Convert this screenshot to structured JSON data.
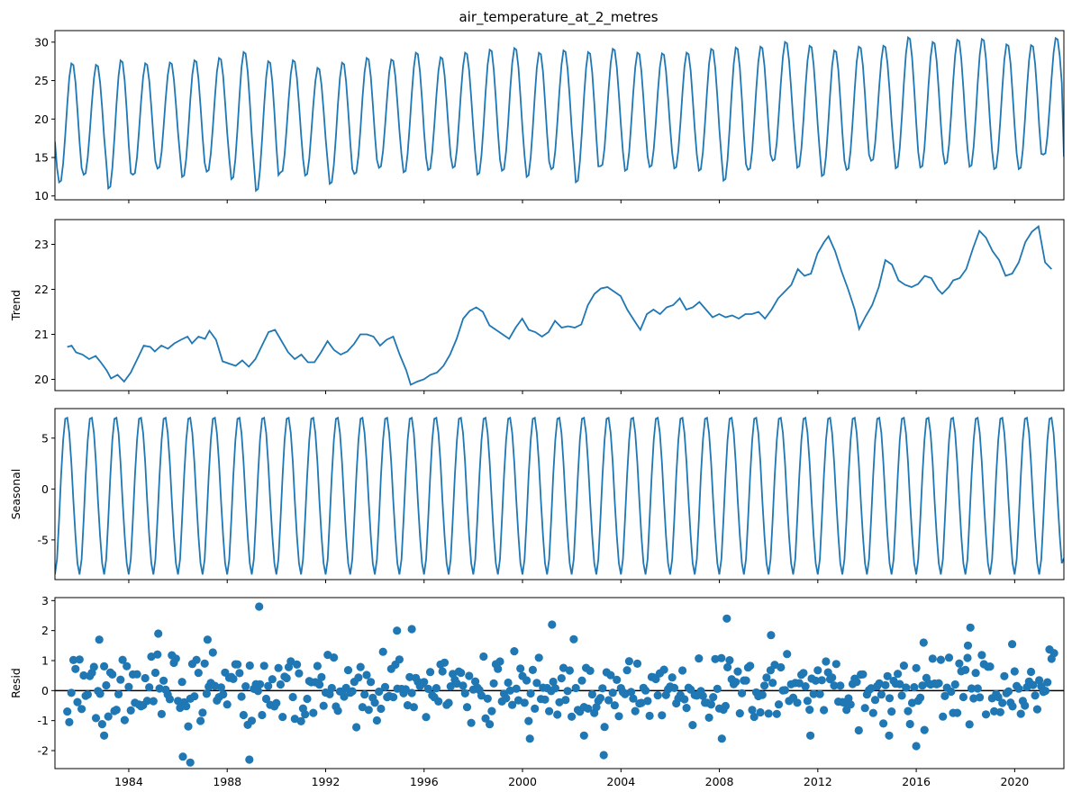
{
  "title": "air_temperature_at_2_metres",
  "colors": {
    "series": "#1f77b4",
    "axis": "#000000",
    "zero_line": "#000000"
  },
  "x_axis": {
    "range": [
      1981.0,
      2022.0
    ],
    "ticks": [
      1984,
      1988,
      1992,
      1996,
      2000,
      2004,
      2008,
      2012,
      2016,
      2020
    ]
  },
  "chart_data": [
    {
      "panel": "observed",
      "type": "line",
      "ylabel": "",
      "ylim": [
        9.5,
        31.5
      ],
      "yticks": [
        10,
        15,
        20,
        25,
        30
      ],
      "start": 1981.0,
      "step_years": 0.08333,
      "mean": 21.2,
      "amplitude": 7.4,
      "phase_offset": -0.58,
      "peaks": [
        {
          "x": 1981.7,
          "y": 27.4
        },
        {
          "x": 1982.7,
          "y": 27.2
        },
        {
          "x": 1983.7,
          "y": 27.8
        },
        {
          "x": 1984.7,
          "y": 27.4
        },
        {
          "x": 1985.7,
          "y": 27.5
        },
        {
          "x": 1986.7,
          "y": 27.8
        },
        {
          "x": 1987.7,
          "y": 28.1
        },
        {
          "x": 1988.7,
          "y": 28.9
        },
        {
          "x": 1989.7,
          "y": 27.7
        },
        {
          "x": 1990.7,
          "y": 27.8
        },
        {
          "x": 1991.7,
          "y": 26.8
        },
        {
          "x": 1992.7,
          "y": 27.5
        },
        {
          "x": 1993.7,
          "y": 28.1
        },
        {
          "x": 1994.7,
          "y": 27.9
        },
        {
          "x": 1995.7,
          "y": 28.8
        },
        {
          "x": 1996.7,
          "y": 28.2
        },
        {
          "x": 1997.7,
          "y": 28.8
        },
        {
          "x": 1998.7,
          "y": 29.2
        },
        {
          "x": 1999.7,
          "y": 29.4
        },
        {
          "x": 2000.7,
          "y": 28.8
        },
        {
          "x": 2001.7,
          "y": 29.1
        },
        {
          "x": 2002.7,
          "y": 28.9
        },
        {
          "x": 2003.7,
          "y": 29.3
        },
        {
          "x": 2004.7,
          "y": 28.8
        },
        {
          "x": 2005.7,
          "y": 28.7
        },
        {
          "x": 2006.7,
          "y": 28.8
        },
        {
          "x": 2007.7,
          "y": 29.3
        },
        {
          "x": 2008.7,
          "y": 29.5
        },
        {
          "x": 2009.7,
          "y": 29.6
        },
        {
          "x": 2010.7,
          "y": 30.2
        },
        {
          "x": 2011.7,
          "y": 29.7
        },
        {
          "x": 2012.7,
          "y": 29.1
        },
        {
          "x": 2013.7,
          "y": 29.6
        },
        {
          "x": 2014.7,
          "y": 29.7
        },
        {
          "x": 2015.7,
          "y": 30.8
        },
        {
          "x": 2016.7,
          "y": 30.2
        },
        {
          "x": 2017.7,
          "y": 30.5
        },
        {
          "x": 2018.7,
          "y": 30.6
        },
        {
          "x": 2019.7,
          "y": 29.9
        },
        {
          "x": 2020.7,
          "y": 29.8
        },
        {
          "x": 2021.7,
          "y": 30.7
        }
      ],
      "troughs": [
        {
          "x": 1981.1,
          "y": 11.6
        },
        {
          "x": 1982.1,
          "y": 12.6
        },
        {
          "x": 1983.1,
          "y": 10.8
        },
        {
          "x": 1984.1,
          "y": 12.6
        },
        {
          "x": 1985.1,
          "y": 13.4
        },
        {
          "x": 1986.1,
          "y": 12.3
        },
        {
          "x": 1987.1,
          "y": 13.0
        },
        {
          "x": 1988.1,
          "y": 12.0
        },
        {
          "x": 1989.1,
          "y": 10.5
        },
        {
          "x": 1990.1,
          "y": 12.9
        },
        {
          "x": 1991.1,
          "y": 12.5
        },
        {
          "x": 1992.1,
          "y": 11.4
        },
        {
          "x": 1993.1,
          "y": 12.7
        },
        {
          "x": 1994.1,
          "y": 13.5
        },
        {
          "x": 1995.1,
          "y": 12.9
        },
        {
          "x": 1996.1,
          "y": 13.2
        },
        {
          "x": 1997.1,
          "y": 13.5
        },
        {
          "x": 1998.1,
          "y": 12.6
        },
        {
          "x": 1999.1,
          "y": 13.1
        },
        {
          "x": 2000.1,
          "y": 12.3
        },
        {
          "x": 2001.1,
          "y": 13.3
        },
        {
          "x": 2002.1,
          "y": 11.6
        },
        {
          "x": 2003.1,
          "y": 13.7
        },
        {
          "x": 2004.1,
          "y": 13.1
        },
        {
          "x": 2005.1,
          "y": 13.6
        },
        {
          "x": 2006.1,
          "y": 13.4
        },
        {
          "x": 2007.1,
          "y": 13.1
        },
        {
          "x": 2008.1,
          "y": 11.8
        },
        {
          "x": 2009.1,
          "y": 13.2
        },
        {
          "x": 2010.1,
          "y": 14.4
        },
        {
          "x": 2011.1,
          "y": 13.5
        },
        {
          "x": 2012.1,
          "y": 12.4
        },
        {
          "x": 2013.1,
          "y": 13.2
        },
        {
          "x": 2014.1,
          "y": 14.4
        },
        {
          "x": 2015.1,
          "y": 13.4
        },
        {
          "x": 2016.1,
          "y": 13.5
        },
        {
          "x": 2017.1,
          "y": 14.0
        },
        {
          "x": 2018.1,
          "y": 13.6
        },
        {
          "x": 2019.1,
          "y": 13.3
        },
        {
          "x": 2020.1,
          "y": 13.3
        },
        {
          "x": 2021.1,
          "y": 15.2
        }
      ],
      "end_value": 15.1
    },
    {
      "panel": "trend",
      "type": "line",
      "ylabel": "Trend",
      "ylim": [
        19.75,
        23.55
      ],
      "yticks": [
        20,
        21,
        22,
        23
      ],
      "points": [
        [
          1981.5,
          20.72
        ],
        [
          1981.7,
          20.75
        ],
        [
          1981.9,
          20.6
        ],
        [
          1982.2,
          20.55
        ],
        [
          1982.5,
          20.45
        ],
        [
          1982.8,
          20.52
        ],
        [
          1983.0,
          20.4
        ],
        [
          1983.3,
          20.2
        ],
        [
          1983.5,
          20.02
        ],
        [
          1983.8,
          20.1
        ],
        [
          1984.1,
          19.95
        ],
        [
          1984.4,
          20.15
        ],
        [
          1984.7,
          20.45
        ],
        [
          1985.0,
          20.75
        ],
        [
          1985.3,
          20.72
        ],
        [
          1985.5,
          20.62
        ],
        [
          1985.8,
          20.75
        ],
        [
          1986.1,
          20.68
        ],
        [
          1986.4,
          20.8
        ],
        [
          1986.7,
          20.88
        ],
        [
          1987.0,
          20.95
        ],
        [
          1987.2,
          20.8
        ],
        [
          1987.5,
          20.95
        ],
        [
          1987.8,
          20.9
        ],
        [
          1988.0,
          21.08
        ],
        [
          1988.3,
          20.88
        ],
        [
          1988.6,
          20.4
        ],
        [
          1988.9,
          20.35
        ],
        [
          1989.2,
          20.3
        ],
        [
          1989.5,
          20.42
        ],
        [
          1989.8,
          20.28
        ],
        [
          1990.1,
          20.45
        ],
        [
          1990.4,
          20.75
        ],
        [
          1990.7,
          21.05
        ],
        [
          1991.0,
          21.1
        ],
        [
          1991.3,
          20.85
        ],
        [
          1991.6,
          20.6
        ],
        [
          1991.9,
          20.45
        ],
        [
          1992.2,
          20.55
        ],
        [
          1992.5,
          20.38
        ],
        [
          1992.8,
          20.38
        ],
        [
          1993.1,
          20.6
        ],
        [
          1993.4,
          20.85
        ],
        [
          1993.7,
          20.65
        ],
        [
          1994.0,
          20.55
        ],
        [
          1994.3,
          20.62
        ],
        [
          1994.6,
          20.78
        ],
        [
          1994.9,
          21.0
        ],
        [
          1995.2,
          21.0
        ],
        [
          1995.5,
          20.95
        ],
        [
          1995.8,
          20.75
        ],
        [
          1996.1,
          20.88
        ],
        [
          1996.4,
          20.95
        ],
        [
          1996.7,
          20.55
        ],
        [
          1997.0,
          20.2
        ],
        [
          1997.2,
          19.88
        ],
        [
          1997.5,
          19.95
        ],
        [
          1997.8,
          20.0
        ],
        [
          1998.1,
          20.1
        ],
        [
          1998.4,
          20.15
        ],
        [
          1998.7,
          20.3
        ],
        [
          1999.0,
          20.55
        ],
        [
          1999.3,
          20.9
        ],
        [
          1999.6,
          21.35
        ],
        [
          1999.9,
          21.52
        ],
        [
          2000.2,
          21.6
        ],
        [
          2000.5,
          21.5
        ],
        [
          2000.8,
          21.2
        ],
        [
          2001.1,
          21.1
        ],
        [
          2001.4,
          21.0
        ],
        [
          2001.7,
          20.9
        ],
        [
          2002.0,
          21.15
        ],
        [
          2002.3,
          21.35
        ],
        [
          2002.6,
          21.1
        ],
        [
          2002.9,
          21.05
        ],
        [
          2003.2,
          20.95
        ],
        [
          2003.5,
          21.05
        ],
        [
          2003.8,
          21.3
        ],
        [
          2004.1,
          21.15
        ],
        [
          2004.4,
          21.18
        ],
        [
          2004.7,
          21.15
        ],
        [
          2005.0,
          21.22
        ],
        [
          2005.3,
          21.65
        ],
        [
          2005.6,
          21.9
        ],
        [
          2005.9,
          22.02
        ],
        [
          2006.2,
          22.05
        ],
        [
          2006.5,
          21.95
        ],
        [
          2006.8,
          21.85
        ],
        [
          2007.1,
          21.55
        ],
        [
          2007.4,
          21.32
        ],
        [
          2007.7,
          21.1
        ],
        [
          2008.0,
          21.45
        ],
        [
          2008.3,
          21.55
        ],
        [
          2008.6,
          21.45
        ],
        [
          2008.9,
          21.6
        ],
        [
          2009.2,
          21.65
        ],
        [
          2009.5,
          21.8
        ],
        [
          2009.8,
          21.55
        ],
        [
          2010.1,
          21.6
        ],
        [
          2010.4,
          21.72
        ],
        [
          2010.7,
          21.55
        ],
        [
          2011.0,
          21.38
        ],
        [
          2011.3,
          21.45
        ],
        [
          2011.6,
          21.38
        ],
        [
          2011.9,
          21.42
        ],
        [
          2012.2,
          21.35
        ],
        [
          2012.5,
          21.45
        ],
        [
          2012.8,
          21.45
        ],
        [
          2013.1,
          21.5
        ],
        [
          2013.4,
          21.35
        ],
        [
          2013.7,
          21.55
        ],
        [
          2014.0,
          21.8
        ],
        [
          2014.3,
          21.95
        ],
        [
          2014.6,
          22.1
        ],
        [
          2014.9,
          22.45
        ],
        [
          2015.2,
          22.3
        ],
        [
          2015.5,
          22.35
        ],
        [
          2015.8,
          22.8
        ],
        [
          2016.1,
          23.05
        ],
        [
          2016.3,
          23.18
        ],
        [
          2016.6,
          22.85
        ],
        [
          2016.9,
          22.4
        ],
        [
          2017.2,
          22.0
        ],
        [
          2017.5,
          21.55
        ],
        [
          2017.7,
          21.12
        ],
        [
          2018.0,
          21.4
        ],
        [
          2018.3,
          21.65
        ],
        [
          2018.6,
          22.05
        ],
        [
          2018.9,
          22.65
        ],
        [
          2019.2,
          22.55
        ],
        [
          2019.5,
          22.2
        ],
        [
          2019.8,
          22.1
        ],
        [
          2020.1,
          22.05
        ],
        [
          2020.4,
          22.12
        ],
        [
          2020.7,
          22.3
        ],
        [
          2021.0,
          22.25
        ],
        [
          2021.3,
          22.0
        ],
        [
          2021.5,
          21.9
        ],
        [
          2021.8,
          22.05
        ],
        [
          2022.0,
          22.2
        ]
      ],
      "tail": [
        [
          2022.3,
          22.25
        ],
        [
          2022.6,
          22.45
        ],
        [
          2022.9,
          22.9
        ],
        [
          2023.2,
          23.3
        ],
        [
          2023.5,
          23.15
        ],
        [
          2023.8,
          22.85
        ],
        [
          2024.1,
          22.65
        ],
        [
          2024.4,
          22.3
        ],
        [
          2024.7,
          22.35
        ],
        [
          2025.0,
          22.6
        ],
        [
          2025.3,
          23.05
        ],
        [
          2025.6,
          23.28
        ],
        [
          2025.9,
          23.4
        ],
        [
          2026.2,
          22.6
        ],
        [
          2026.5,
          22.45
        ]
      ]
    },
    {
      "panel": "seasonal",
      "type": "line",
      "ylabel": "Seasonal",
      "ylim": [
        -8.9,
        7.9
      ],
      "yticks": [
        -5,
        0,
        5
      ],
      "start": 1981.0,
      "step_years": 0.08333,
      "monthly_pattern": [
        -8.4,
        -6.9,
        -3.0,
        1.3,
        4.8,
        6.9,
        7.0,
        5.5,
        2.6,
        -1.2,
        -4.6,
        -7.3
      ],
      "end_value": -6.8
    },
    {
      "panel": "resid",
      "type": "scatter",
      "ylabel": "Resid",
      "ylim": [
        -2.6,
        3.1
      ],
      "yticks": [
        -2,
        -1,
        0,
        1,
        2,
        3
      ],
      "zero_line": 0,
      "start": 1981.0,
      "step_years": 0.08333,
      "seed": 42,
      "highlights": [
        [
          1982.8,
          1.7
        ],
        [
          1985.2,
          1.9
        ],
        [
          1986.2,
          -2.2
        ],
        [
          1986.5,
          -2.4
        ],
        [
          1987.2,
          1.7
        ],
        [
          1988.9,
          -2.3
        ],
        [
          1989.3,
          2.8
        ],
        [
          1994.9,
          2.0
        ],
        [
          1995.5,
          2.05
        ],
        [
          2001.2,
          2.2
        ],
        [
          2003.3,
          -2.15
        ],
        [
          2008.1,
          -1.6
        ],
        [
          2008.3,
          2.4
        ],
        [
          2010.1,
          1.85
        ],
        [
          2016.0,
          -1.85
        ],
        [
          2016.3,
          1.6
        ],
        [
          2018.2,
          2.1
        ],
        [
          2018.1,
          1.5
        ],
        [
          2019.9,
          1.55
        ],
        [
          2021.6,
          1.25
        ],
        [
          2000.3,
          -1.6
        ],
        [
          2002.5,
          -1.5
        ],
        [
          1983.0,
          -1.5
        ],
        [
          2011.7,
          -1.5
        ],
        [
          2014.9,
          -1.5
        ]
      ]
    }
  ]
}
